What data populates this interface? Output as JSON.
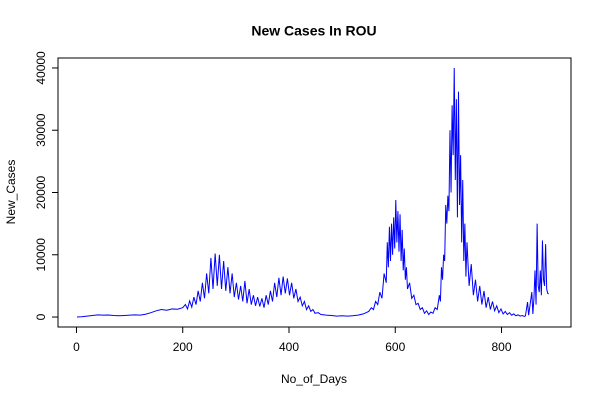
{
  "chart_data": {
    "type": "line",
    "title": "New Cases In ROU",
    "x_label": "No_of_Days",
    "y_label": "New_Cases",
    "color": "#0000ff",
    "x": [
      1,
      10,
      20,
      30,
      40,
      50,
      60,
      70,
      80,
      90,
      100,
      110,
      120,
      130,
      140,
      150,
      160,
      170,
      180,
      190,
      200,
      205,
      209,
      213,
      217,
      221,
      225,
      229,
      233,
      237,
      241,
      245,
      249,
      253,
      257,
      261,
      265,
      269,
      273,
      277,
      281,
      285,
      289,
      293,
      297,
      301,
      305,
      309,
      313,
      317,
      321,
      325,
      329,
      333,
      337,
      341,
      345,
      349,
      353,
      357,
      361,
      365,
      369,
      373,
      377,
      381,
      385,
      389,
      393,
      397,
      401,
      405,
      409,
      413,
      417,
      421,
      425,
      429,
      433,
      437,
      441,
      445,
      449,
      455,
      460,
      470,
      480,
      490,
      500,
      510,
      520,
      530,
      540,
      550,
      555,
      559,
      563,
      567,
      571,
      575,
      579,
      583,
      585,
      587,
      589,
      591,
      593,
      595,
      597,
      599,
      601,
      603,
      605,
      607,
      609,
      611,
      613,
      615,
      617,
      619,
      621,
      623,
      627,
      631,
      635,
      639,
      643,
      647,
      651,
      655,
      659,
      663,
      667,
      671,
      675,
      679,
      683,
      685,
      687,
      689,
      691,
      693,
      695,
      697,
      699,
      701,
      703,
      705,
      707,
      709,
      711,
      713,
      715,
      717,
      719,
      721,
      723,
      725,
      727,
      729,
      731,
      733,
      735,
      739,
      743,
      747,
      751,
      755,
      759,
      763,
      767,
      771,
      775,
      779,
      783,
      787,
      791,
      795,
      799,
      803,
      807,
      811,
      815,
      819,
      823,
      827,
      831,
      835,
      839,
      843,
      845,
      849,
      851,
      853,
      857,
      859,
      861,
      863,
      865,
      867,
      869,
      871,
      873,
      875,
      877,
      879,
      881,
      883,
      885,
      887,
      889
    ],
    "values": [
      0,
      50,
      150,
      250,
      350,
      300,
      320,
      250,
      200,
      250,
      300,
      350,
      300,
      450,
      700,
      1000,
      1200,
      1100,
      1300,
      1250,
      1500,
      2000,
      1300,
      2600,
      1600,
      3200,
      2000,
      4200,
      2500,
      5500,
      3000,
      7000,
      3800,
      9500,
      4500,
      10200,
      5000,
      10000,
      4500,
      9000,
      4200,
      8000,
      3800,
      7000,
      3200,
      5500,
      2800,
      5000,
      2500,
      5800,
      2200,
      4500,
      2000,
      3500,
      1800,
      3200,
      1700,
      3000,
      1500,
      3500,
      2000,
      4200,
      2500,
      5500,
      3200,
      6300,
      3500,
      6500,
      3800,
      6200,
      3500,
      5500,
      3000,
      4500,
      2500,
      3200,
      1800,
      2500,
      1200,
      1800,
      900,
      1200,
      600,
      700,
      400,
      300,
      250,
      150,
      200,
      150,
      200,
      300,
      500,
      900,
      1500,
      1200,
      2500,
      2000,
      4000,
      3000,
      7000,
      5500,
      12000,
      8000,
      14500,
      9000,
      15000,
      10000,
      16000,
      11000,
      18800,
      12000,
      17000,
      10500,
      16500,
      9000,
      14000,
      7500,
      11000,
      6000,
      8000,
      4500,
      5500,
      3000,
      3500,
      2000,
      2200,
      1200,
      1500,
      600,
      1000,
      400,
      800,
      600,
      1500,
      1200,
      3500,
      2500,
      8000,
      6000,
      10000,
      9000,
      18000,
      15000,
      19500,
      17000,
      30000,
      20000,
      34000,
      26000,
      40000,
      22000,
      35000,
      16000,
      36200,
      18000,
      26000,
      12000,
      22000,
      9000,
      15000,
      6500,
      12000,
      5000,
      8500,
      3500,
      6000,
      2500,
      5000,
      2000,
      4200,
      1500,
      3200,
      1200,
      2500,
      1000,
      1800,
      700,
      1300,
      500,
      900,
      400,
      700,
      300,
      500,
      200,
      350,
      150,
      250,
      100,
      200,
      2400,
      300,
      1500,
      4000,
      500,
      3000,
      7500,
      2000,
      15000,
      5000,
      4000,
      7500,
      3500,
      12300,
      6000,
      5000,
      11700,
      4500,
      3800,
      3700
    ],
    "xlim": [
      -34.76,
      930.76
    ],
    "ylim": [
      -1600,
      41600
    ],
    "xticks": [
      0,
      200,
      400,
      600,
      800
    ],
    "yticks": [
      0,
      10000,
      20000,
      30000,
      40000
    ]
  }
}
